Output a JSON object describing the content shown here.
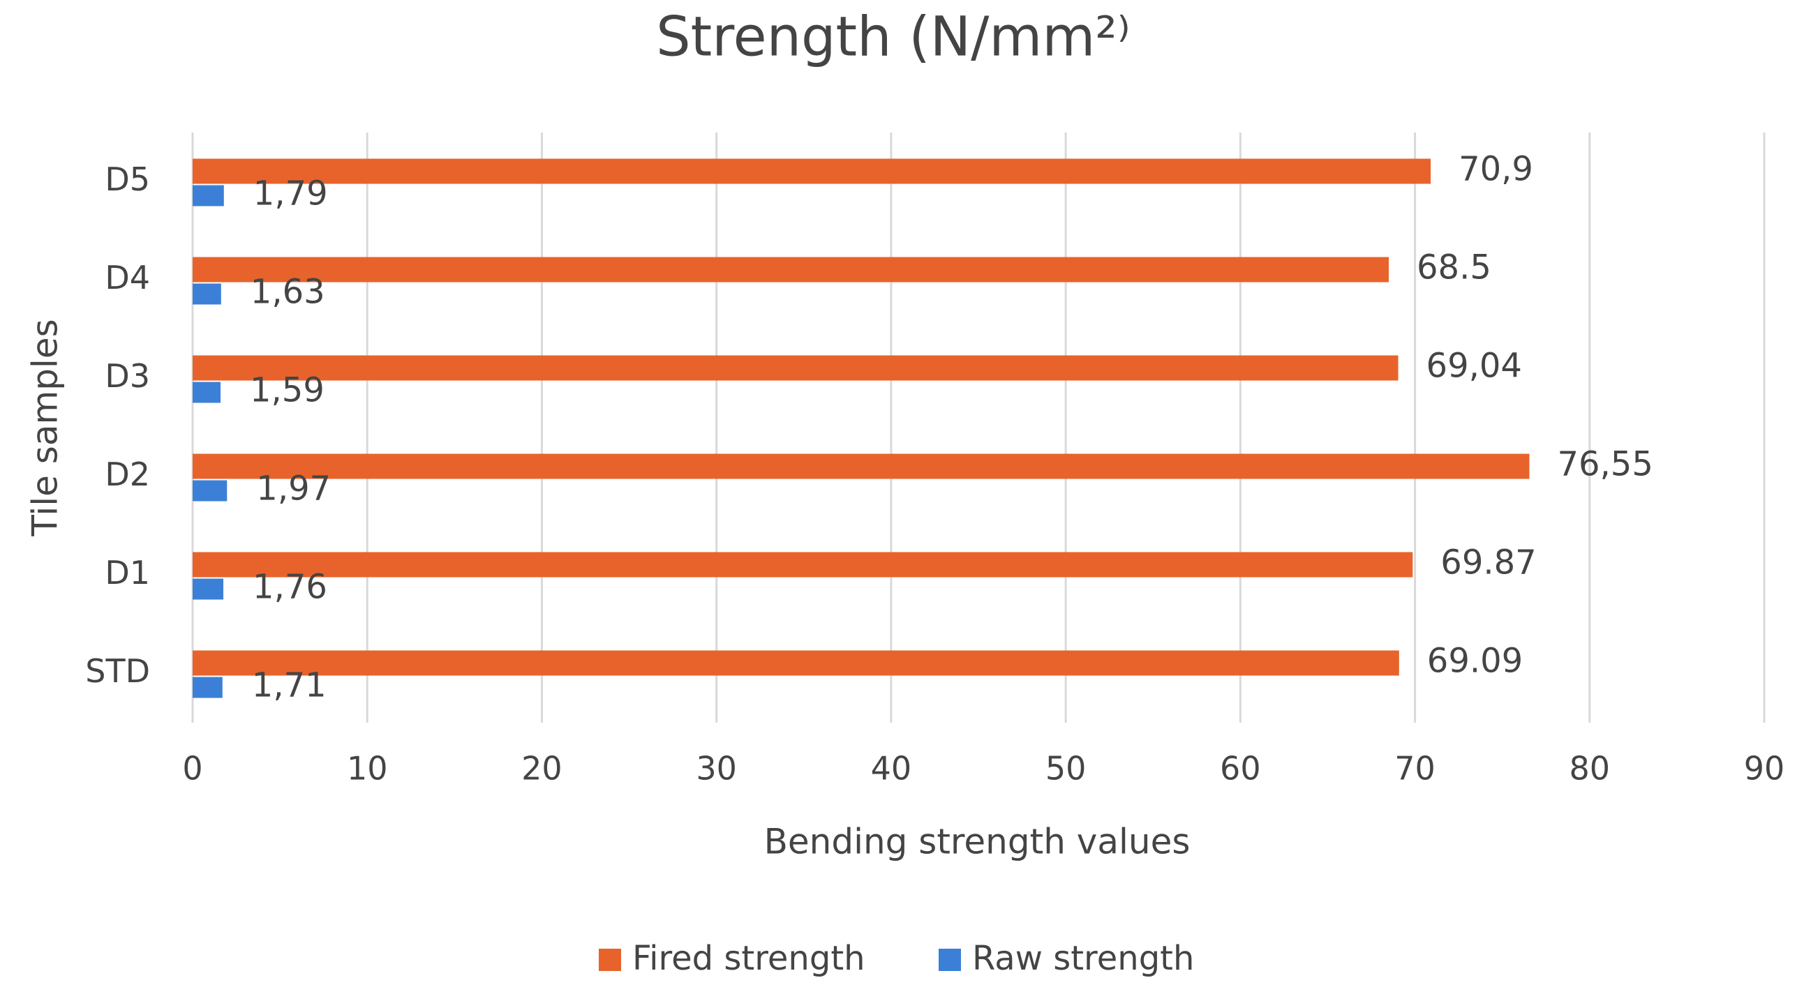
{
  "chart_data": {
    "type": "bar",
    "orientation": "horizontal",
    "title": "Strength (N/mm²⁾",
    "x_label": "Bending strength values",
    "y_label": "Tile samples",
    "categories": [
      "STD",
      "D1",
      "D2",
      "D3",
      "D4",
      "D5"
    ],
    "series": [
      {
        "name": "Fired strength",
        "color": "#e8632b",
        "values": [
          69.09,
          69.87,
          76.55,
          69.04,
          68.5,
          70.9
        ],
        "value_labels": [
          "69.09",
          "69.87",
          "76,55",
          "69,04",
          "68.5",
          "70,9"
        ]
      },
      {
        "name": "Raw strength",
        "color": "#3b80d6",
        "values": [
          1.71,
          1.76,
          1.97,
          1.59,
          1.63,
          1.79
        ],
        "value_labels": [
          "1,71",
          "1,76",
          "1,97",
          "1,59",
          "1,63",
          "1,79"
        ]
      }
    ],
    "xlim": [
      0,
      90
    ],
    "xticks": [
      0,
      10,
      20,
      30,
      40,
      50,
      60,
      70,
      80,
      90
    ],
    "grid": true,
    "legend": "bottom"
  }
}
